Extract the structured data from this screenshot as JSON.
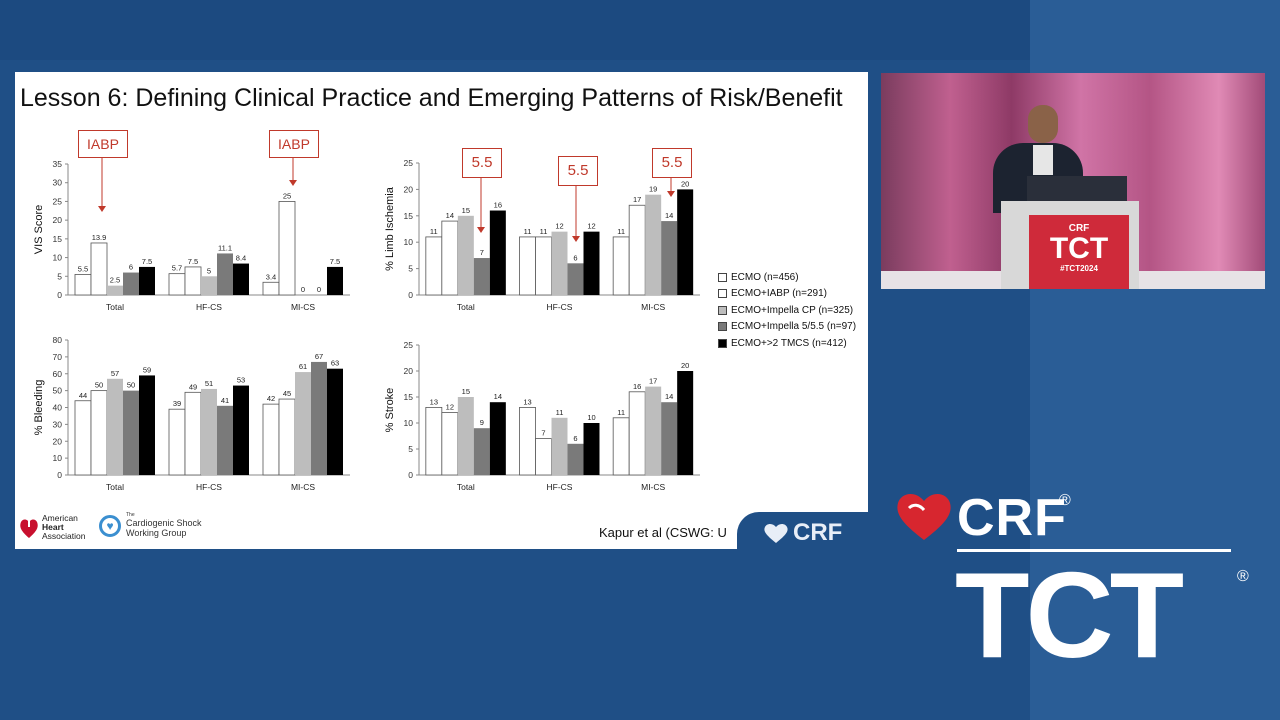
{
  "slide": {
    "title": "Lesson 6: Defining Clinical Practice and Emerging Patterns of Risk/Benefit",
    "citation": "Kapur et al (CSWG: U",
    "callouts": [
      "IABP",
      "IABP",
      "5.5",
      "5.5",
      "5.5"
    ],
    "logos": {
      "aha": [
        "American",
        "Heart",
        "Association"
      ],
      "csw_the": "The",
      "csw": [
        "Cardiogenic Shock",
        "Working Group"
      ],
      "crf_tab": "CRF"
    }
  },
  "legend": [
    {
      "label": "ECMO (n=456)",
      "color": "#ffffff"
    },
    {
      "label": "ECMO+IABP (n=291)",
      "color": "#ffffff"
    },
    {
      "label": "ECMO+Impella CP (n=325)",
      "color": "#bdbdbd"
    },
    {
      "label": "ECMO+Impella 5/5.5 (n=97)",
      "color": "#7a7a7a"
    },
    {
      "label": "ECMO+>2 TMCS (n=412)",
      "color": "#000000"
    }
  ],
  "chart_data": [
    {
      "type": "bar",
      "ylabel": "VIS Score",
      "ylim": [
        0,
        35
      ],
      "yticks": [
        0,
        5,
        10,
        15,
        20,
        25,
        30,
        35
      ],
      "categories": [
        "Total",
        "HF-CS",
        "MI-CS"
      ],
      "series": [
        {
          "name": "ECMO (n=456)",
          "values": [
            5.5,
            5.7,
            3.4
          ],
          "labels": [
            "5.5",
            "5.7",
            "3.4"
          ]
        },
        {
          "name": "ECMO+IABP (n=291)",
          "values": [
            13.9,
            7.5,
            25
          ],
          "labels": [
            "13.9",
            "7.5",
            "25"
          ]
        },
        {
          "name": "ECMO+Impella CP (n=325)",
          "values": [
            2.5,
            5,
            0
          ],
          "labels": [
            "2.5",
            "5",
            "0"
          ]
        },
        {
          "name": "ECMO+Impella 5/5.5 (n=97)",
          "values": [
            6,
            11.1,
            0
          ],
          "labels": [
            "6",
            "11.1",
            "0"
          ]
        },
        {
          "name": "ECMO+>2 TMCS (n=412)",
          "values": [
            7.5,
            8.4,
            7.5
          ],
          "labels": [
            "7.5",
            "8.4",
            "7.5"
          ]
        }
      ]
    },
    {
      "type": "bar",
      "ylabel": "% Limb Ischemia",
      "ylim": [
        0,
        25
      ],
      "yticks": [
        0,
        5,
        10,
        15,
        20,
        25
      ],
      "categories": [
        "Total",
        "HF-CS",
        "MI-CS"
      ],
      "series": [
        {
          "name": "ECMO (n=456)",
          "values": [
            11,
            11,
            11
          ],
          "labels": [
            "11",
            "11",
            "11"
          ]
        },
        {
          "name": "ECMO+IABP (n=291)",
          "values": [
            14,
            11,
            17
          ],
          "labels": [
            "14",
            "11",
            "17"
          ]
        },
        {
          "name": "ECMO+Impella CP (n=325)",
          "values": [
            15,
            12,
            19
          ],
          "labels": [
            "15",
            "12",
            "19"
          ]
        },
        {
          "name": "ECMO+Impella 5/5.5 (n=97)",
          "values": [
            7,
            6,
            14
          ],
          "labels": [
            "7",
            "6",
            "14"
          ]
        },
        {
          "name": "ECMO+>2 TMCS (n=412)",
          "values": [
            16,
            12,
            20
          ],
          "labels": [
            "16",
            "12",
            "20"
          ]
        }
      ]
    },
    {
      "type": "bar",
      "ylabel": "% Bleeding",
      "ylim": [
        0,
        80
      ],
      "yticks": [
        0,
        10,
        20,
        30,
        40,
        50,
        60,
        70,
        80
      ],
      "categories": [
        "Total",
        "HF-CS",
        "MI-CS"
      ],
      "series": [
        {
          "name": "ECMO (n=456)",
          "values": [
            44,
            39,
            42
          ],
          "labels": [
            "44",
            "39",
            "42"
          ]
        },
        {
          "name": "ECMO+IABP (n=291)",
          "values": [
            50,
            49,
            45
          ],
          "labels": [
            "50",
            "49",
            "45"
          ]
        },
        {
          "name": "ECMO+Impella CP (n=325)",
          "values": [
            57,
            51,
            61
          ],
          "labels": [
            "57",
            "51",
            "61"
          ]
        },
        {
          "name": "ECMO+Impella 5/5.5 (n=97)",
          "values": [
            50,
            41,
            67
          ],
          "labels": [
            "50",
            "41",
            "67"
          ]
        },
        {
          "name": "ECMO+>2 TMCS (n=412)",
          "values": [
            59,
            53,
            63
          ],
          "labels": [
            "59",
            "53",
            "63"
          ]
        }
      ]
    },
    {
      "type": "bar",
      "ylabel": "% Stroke",
      "ylim": [
        0,
        25
      ],
      "yticks": [
        0,
        5,
        10,
        15,
        20,
        25
      ],
      "categories": [
        "Total",
        "HF-CS",
        "MI-CS"
      ],
      "series": [
        {
          "name": "ECMO (n=456)",
          "values": [
            13,
            13,
            11
          ],
          "labels": [
            "13",
            "13",
            "11"
          ]
        },
        {
          "name": "ECMO+IABP (n=291)",
          "values": [
            12,
            7,
            16
          ],
          "labels": [
            "12",
            "7",
            "16"
          ]
        },
        {
          "name": "ECMO+Impella CP (n=325)",
          "values": [
            15,
            11,
            17
          ],
          "labels": [
            "15",
            "11",
            "17"
          ]
        },
        {
          "name": "ECMO+Impella 5/5.5 (n=97)",
          "values": [
            9,
            6,
            14
          ],
          "labels": [
            "9",
            "6",
            "14"
          ]
        },
        {
          "name": "ECMO+>2 TMCS (n=412)",
          "values": [
            14,
            10,
            20
          ],
          "labels": [
            "14",
            "10",
            "20"
          ]
        }
      ]
    }
  ],
  "video": {
    "podium_crf": "CRF",
    "podium_tct": "TCT",
    "podium_hash": "#TCT2024"
  },
  "brand": {
    "crf": "CRF",
    "reg": "®",
    "tct": "TCT"
  }
}
